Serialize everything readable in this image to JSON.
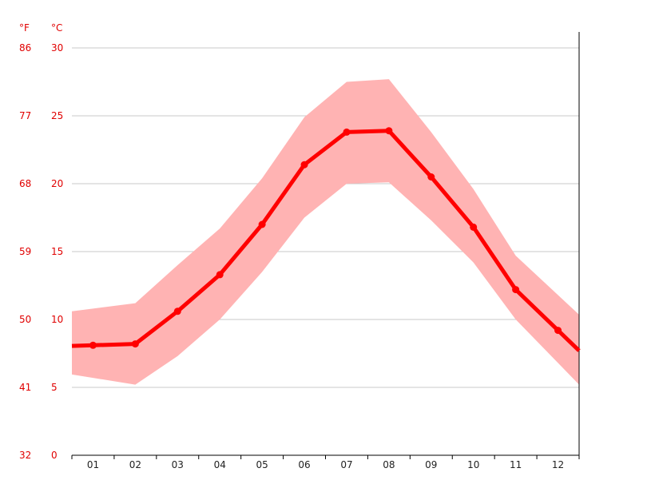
{
  "chart_data": {
    "type": "line",
    "title": "",
    "xlabel": "",
    "ylabel": "",
    "unit_labels": {
      "left": "°F",
      "right": "°C"
    },
    "y_ticks_c": [
      0,
      5,
      10,
      15,
      20,
      25,
      30
    ],
    "y_ticks_f": [
      32,
      41,
      50,
      59,
      68,
      77,
      86
    ],
    "ylim": [
      0,
      30
    ],
    "grid": true,
    "categories": [
      "01",
      "02",
      "03",
      "04",
      "05",
      "06",
      "07",
      "08",
      "09",
      "10",
      "11",
      "12"
    ],
    "series": [
      {
        "values": [
          8.1,
          8.2,
          10.6,
          13.3,
          17.0,
          21.4,
          23.8,
          23.9,
          20.5,
          16.8,
          12.2,
          9.2
        ]
      }
    ],
    "bands": [
      {
        "upper": [
          10.8,
          11.2,
          14.0,
          16.7,
          20.4,
          24.9,
          27.5,
          27.7,
          23.8,
          19.6,
          14.7,
          11.8
        ],
        "lower": [
          5.7,
          5.2,
          7.3,
          10.0,
          13.5,
          17.5,
          20.0,
          20.1,
          17.3,
          14.2,
          10.0,
          6.8
        ]
      }
    ],
    "colors": {
      "line": "#ff0000",
      "band": "#ffb3b3",
      "axis_text": "#e00000"
    }
  }
}
